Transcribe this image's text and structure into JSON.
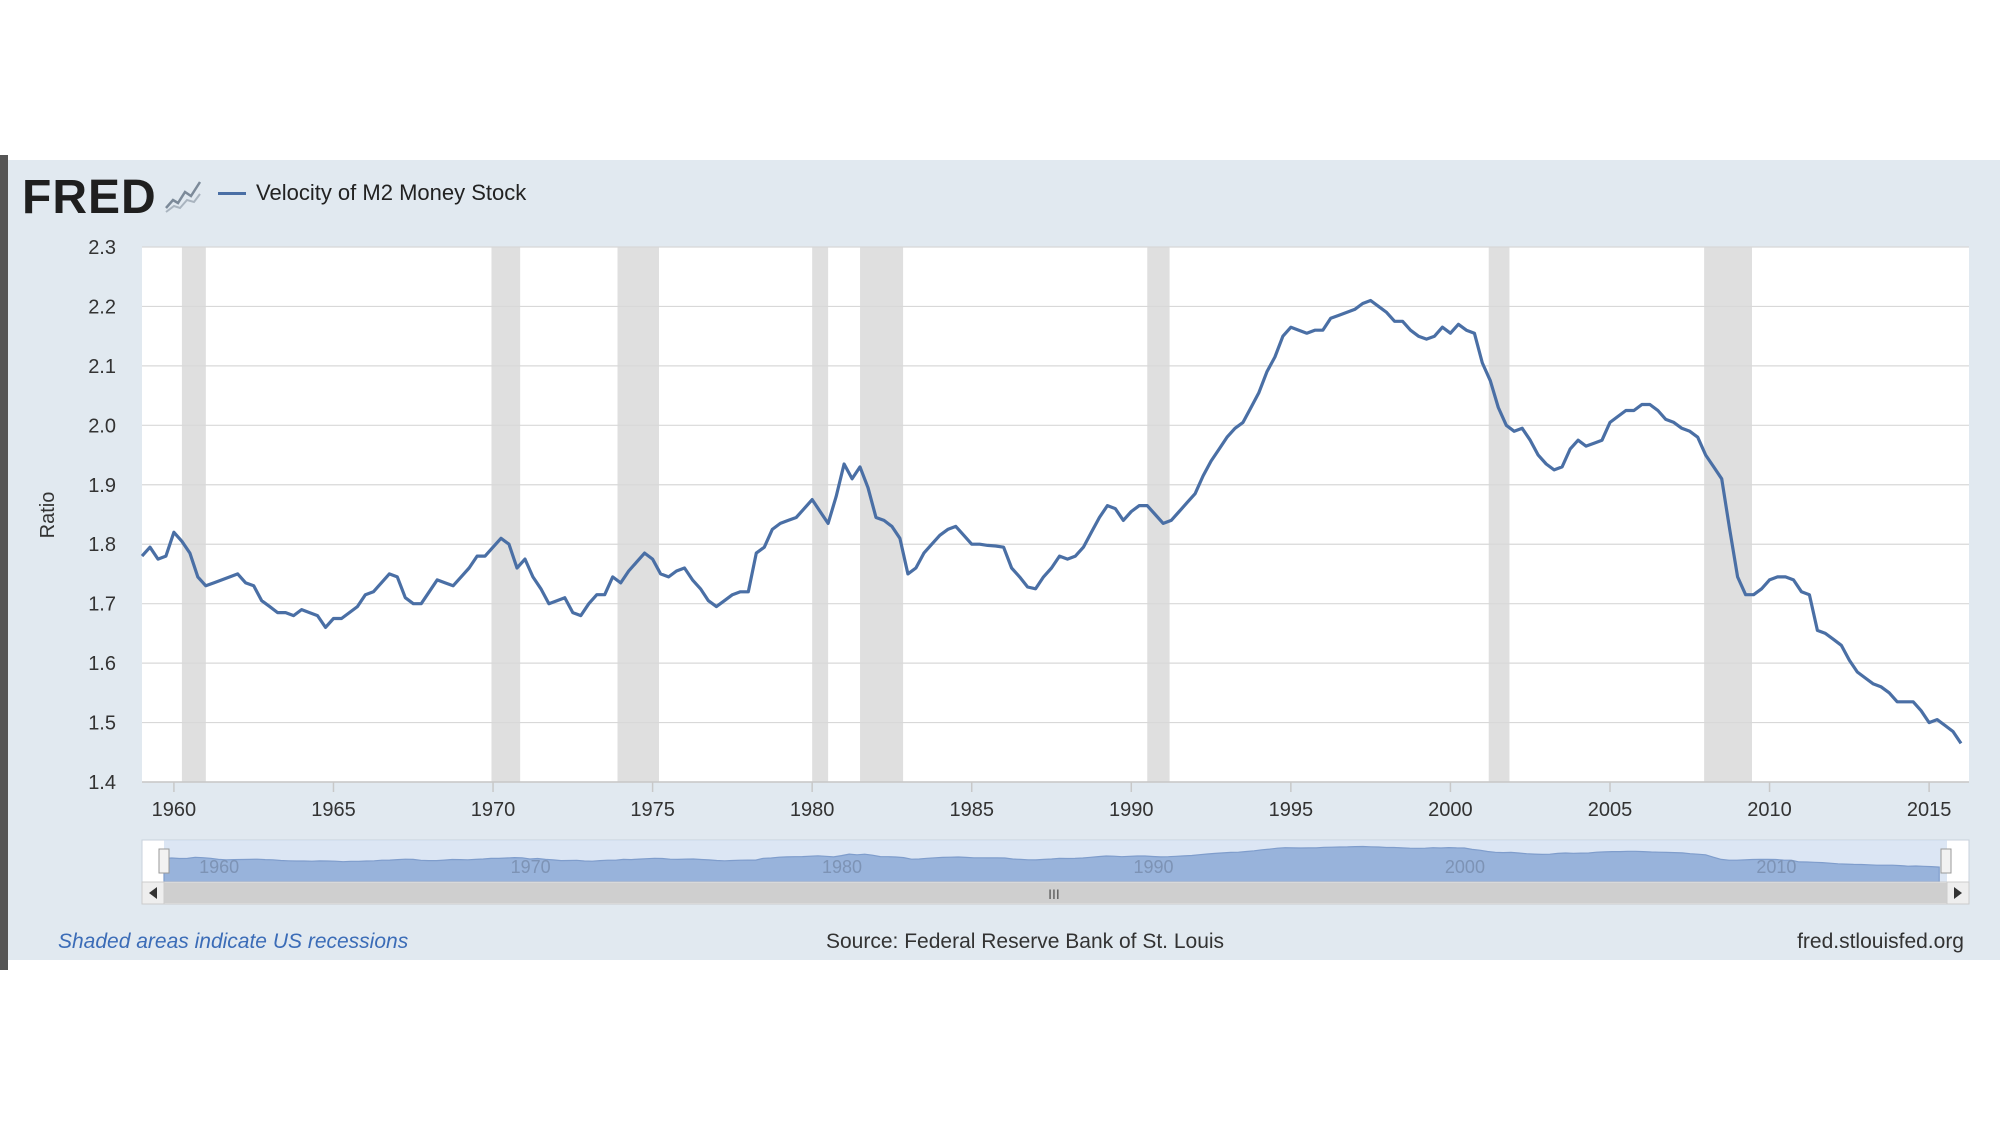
{
  "brand": {
    "logo_text": "FRED"
  },
  "footer": {
    "note": "Shaded areas indicate US recessions",
    "source": "Source: Federal Reserve Bank of St. Louis",
    "url": "fred.stlouisfed.org"
  },
  "colors": {
    "series": "#4a6fa5",
    "recession": "#dfdfdf",
    "panel": "#e1e9f0",
    "grid": "#d8d8d8",
    "navigator_fill": "#98b3db"
  },
  "navigator": {
    "labels": [
      "1960",
      "1970",
      "1980",
      "1990",
      "2000",
      "2010"
    ],
    "scroll_grip": "III"
  },
  "chart_data": {
    "type": "line",
    "title": "",
    "ylabel": "Ratio",
    "xlabel": "",
    "ylim": [
      1.4,
      2.3
    ],
    "xlim": [
      1959.0,
      2016.25
    ],
    "yticks": [
      "1.4",
      "1.5",
      "1.6",
      "1.7",
      "1.8",
      "1.9",
      "2.0",
      "2.1",
      "2.2",
      "2.3"
    ],
    "xticks": [
      "1960",
      "1965",
      "1970",
      "1975",
      "1980",
      "1985",
      "1990",
      "1995",
      "2000",
      "2005",
      "2010",
      "2015"
    ],
    "grid": true,
    "legend_position": "top-left",
    "recessions": [
      [
        1960.25,
        1961.0
      ],
      [
        1969.95,
        1970.85
      ],
      [
        1973.9,
        1975.2
      ],
      [
        1980.0,
        1980.5
      ],
      [
        1981.5,
        1982.85
      ],
      [
        1990.5,
        1991.2
      ],
      [
        2001.2,
        2001.85
      ],
      [
        2007.95,
        2009.45
      ]
    ],
    "series": [
      {
        "name": "Velocity of M2 Money Stock",
        "x": [
          1959.0,
          1959.25,
          1959.5,
          1959.75,
          1960.0,
          1960.25,
          1960.5,
          1960.75,
          1961.0,
          1961.25,
          1961.5,
          1961.75,
          1962.0,
          1962.25,
          1962.5,
          1962.75,
          1963.0,
          1963.25,
          1963.5,
          1963.75,
          1964.0,
          1964.25,
          1964.5,
          1964.75,
          1965.0,
          1965.25,
          1965.5,
          1965.75,
          1966.0,
          1966.25,
          1966.5,
          1966.75,
          1967.0,
          1967.25,
          1967.5,
          1967.75,
          1968.0,
          1968.25,
          1968.5,
          1968.75,
          1969.0,
          1969.25,
          1969.5,
          1969.75,
          1970.0,
          1970.25,
          1970.5,
          1970.75,
          1971.0,
          1971.25,
          1971.5,
          1971.75,
          1972.0,
          1972.25,
          1972.5,
          1972.75,
          1973.0,
          1973.25,
          1973.5,
          1973.75,
          1974.0,
          1974.25,
          1974.5,
          1974.75,
          1975.0,
          1975.25,
          1975.5,
          1975.75,
          1976.0,
          1976.25,
          1976.5,
          1976.75,
          1977.0,
          1977.25,
          1977.5,
          1977.75,
          1978.0,
          1978.25,
          1978.5,
          1978.75,
          1979.0,
          1979.25,
          1979.5,
          1979.75,
          1980.0,
          1980.25,
          1980.5,
          1980.75,
          1981.0,
          1981.25,
          1981.5,
          1981.75,
          1982.0,
          1982.25,
          1982.5,
          1982.75,
          1983.0,
          1983.25,
          1983.5,
          1983.75,
          1984.0,
          1984.25,
          1984.5,
          1984.75,
          1985.0,
          1985.25,
          1985.5,
          1985.75,
          1986.0,
          1986.25,
          1986.5,
          1986.75,
          1987.0,
          1987.25,
          1987.5,
          1987.75,
          1988.0,
          1988.25,
          1988.5,
          1988.75,
          1989.0,
          1989.25,
          1989.5,
          1989.75,
          1990.0,
          1990.25,
          1990.5,
          1990.75,
          1991.0,
          1991.25,
          1991.5,
          1991.75,
          1992.0,
          1992.25,
          1992.5,
          1992.75,
          1993.0,
          1993.25,
          1993.5,
          1993.75,
          1994.0,
          1994.25,
          1994.5,
          1994.75,
          1995.0,
          1995.25,
          1995.5,
          1995.75,
          1996.0,
          1996.25,
          1996.5,
          1996.75,
          1997.0,
          1997.25,
          1997.5,
          1997.75,
          1998.0,
          1998.25,
          1998.5,
          1998.75,
          1999.0,
          1999.25,
          1999.5,
          1999.75,
          2000.0,
          2000.25,
          2000.5,
          2000.75,
          2001.0,
          2001.25,
          2001.5,
          2001.75,
          2002.0,
          2002.25,
          2002.5,
          2002.75,
          2003.0,
          2003.25,
          2003.5,
          2003.75,
          2004.0,
          2004.25,
          2004.5,
          2004.75,
          2005.0,
          2005.25,
          2005.5,
          2005.75,
          2006.0,
          2006.25,
          2006.5,
          2006.75,
          2007.0,
          2007.25,
          2007.5,
          2007.75,
          2008.0,
          2008.25,
          2008.5,
          2008.75,
          2009.0,
          2009.25,
          2009.5,
          2009.75,
          2010.0,
          2010.25,
          2010.5,
          2010.75,
          2011.0,
          2011.25,
          2011.5,
          2011.75,
          2012.0,
          2012.25,
          2012.5,
          2012.75,
          2013.0,
          2013.25,
          2013.5,
          2013.75,
          2014.0,
          2014.25,
          2014.5,
          2014.75,
          2015.0,
          2015.25,
          2015.5,
          2015.75,
          2016.0
        ],
        "values": [
          1.78,
          1.795,
          1.775,
          1.78,
          1.82,
          1.805,
          1.785,
          1.745,
          1.73,
          1.735,
          1.74,
          1.745,
          1.75,
          1.735,
          1.73,
          1.705,
          1.695,
          1.685,
          1.685,
          1.68,
          1.69,
          1.685,
          1.68,
          1.66,
          1.675,
          1.675,
          1.685,
          1.695,
          1.715,
          1.72,
          1.735,
          1.75,
          1.745,
          1.71,
          1.7,
          1.7,
          1.72,
          1.74,
          1.735,
          1.73,
          1.745,
          1.76,
          1.78,
          1.78,
          1.795,
          1.81,
          1.8,
          1.76,
          1.775,
          1.745,
          1.725,
          1.7,
          1.705,
          1.71,
          1.685,
          1.68,
          1.7,
          1.715,
          1.715,
          1.745,
          1.735,
          1.755,
          1.77,
          1.785,
          1.775,
          1.75,
          1.745,
          1.755,
          1.76,
          1.74,
          1.725,
          1.705,
          1.695,
          1.705,
          1.715,
          1.72,
          1.72,
          1.785,
          1.795,
          1.825,
          1.835,
          1.84,
          1.845,
          1.86,
          1.875,
          1.855,
          1.835,
          1.88,
          1.935,
          1.91,
          1.93,
          1.895,
          1.845,
          1.84,
          1.83,
          1.81,
          1.75,
          1.76,
          1.785,
          1.8,
          1.815,
          1.825,
          1.83,
          1.815,
          1.8,
          1.8,
          1.798,
          1.797,
          1.795,
          1.76,
          1.745,
          1.728,
          1.725,
          1.745,
          1.76,
          1.78,
          1.775,
          1.78,
          1.795,
          1.82,
          1.845,
          1.865,
          1.86,
          1.84,
          1.855,
          1.865,
          1.865,
          1.85,
          1.835,
          1.84,
          1.855,
          1.87,
          1.885,
          1.915,
          1.94,
          1.96,
          1.98,
          1.995,
          2.005,
          2.03,
          2.055,
          2.09,
          2.115,
          2.15,
          2.165,
          2.16,
          2.155,
          2.16,
          2.16,
          2.18,
          2.185,
          2.19,
          2.195,
          2.205,
          2.21,
          2.2,
          2.19,
          2.175,
          2.175,
          2.16,
          2.15,
          2.145,
          2.15,
          2.165,
          2.155,
          2.17,
          2.16,
          2.155,
          2.105,
          2.075,
          2.03,
          2.0,
          1.99,
          1.995,
          1.975,
          1.95,
          1.935,
          1.925,
          1.93,
          1.96,
          1.975,
          1.965,
          1.97,
          1.975,
          2.005,
          2.015,
          2.025,
          2.025,
          2.035,
          2.035,
          2.025,
          2.01,
          2.005,
          1.995,
          1.99,
          1.98,
          1.95,
          1.93,
          1.91,
          1.825,
          1.745,
          1.715,
          1.715,
          1.725,
          1.74,
          1.745,
          1.745,
          1.74,
          1.72,
          1.715,
          1.655,
          1.65,
          1.64,
          1.63,
          1.605,
          1.585,
          1.575,
          1.565,
          1.56,
          1.55,
          1.535,
          1.535,
          1.535,
          1.52,
          1.5,
          1.505,
          1.495,
          1.485,
          1.465
        ]
      }
    ]
  }
}
